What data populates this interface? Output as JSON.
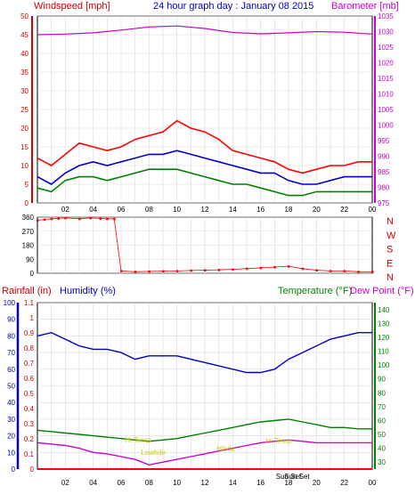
{
  "chart_data": [
    {
      "type": "line",
      "title": "24 hour graph day : January 08 2015",
      "left_label": "Windspeed [mph]",
      "right_label": "Barometer [mb]",
      "x_ticks": [
        "02",
        "04",
        "06",
        "08",
        "10",
        "12",
        "14",
        "16",
        "18",
        "20",
        "22",
        "00"
      ],
      "x_range_hours": [
        0,
        24
      ],
      "left_axis": {
        "min": 0,
        "max": 50,
        "ticks": [
          "0",
          "5",
          "10",
          "15",
          "20",
          "25",
          "30",
          "35",
          "40",
          "45",
          "50"
        ]
      },
      "right_axis": {
        "min": 975,
        "max": 1035,
        "ticks": [
          "975",
          "980",
          "985",
          "990",
          "995",
          "1000",
          "1005",
          "1010",
          "1015",
          "1020",
          "1025",
          "1030",
          "1035"
        ]
      },
      "grid": true,
      "colors": {
        "gust": "#ff0000",
        "wind": "#0000cc",
        "windspeed_green": "#008000",
        "barometer": "#cc00cc"
      },
      "series": [
        {
          "name": "Windspeed",
          "color": "#ff0000",
          "x": [
            0,
            1,
            2,
            3,
            4,
            5,
            6,
            7,
            8,
            9,
            10,
            11,
            12,
            13,
            14,
            15,
            16,
            17,
            18,
            19,
            20,
            21,
            22,
            23,
            24
          ],
          "values": [
            12,
            10,
            13,
            16,
            15,
            14,
            15,
            17,
            18,
            19,
            22,
            20,
            19,
            17,
            14,
            13,
            12,
            11,
            9,
            8,
            9,
            10,
            10,
            11,
            11
          ]
        },
        {
          "name": "",
          "color": "#0000cc",
          "x": [
            0,
            1,
            2,
            3,
            4,
            5,
            6,
            7,
            8,
            9,
            10,
            11,
            12,
            13,
            14,
            15,
            16,
            17,
            18,
            19,
            20,
            21,
            22,
            23,
            24
          ],
          "values": [
            7,
            5,
            8,
            10,
            11,
            10,
            11,
            12,
            13,
            13,
            14,
            13,
            12,
            11,
            10,
            9,
            8,
            8,
            6,
            5,
            5,
            6,
            7,
            7,
            7
          ]
        },
        {
          "name": "",
          "color": "#008000",
          "x": [
            0,
            1,
            2,
            3,
            4,
            5,
            6,
            7,
            8,
            9,
            10,
            11,
            12,
            13,
            14,
            15,
            16,
            17,
            18,
            19,
            20,
            21,
            22,
            23,
            24
          ],
          "values": [
            4,
            3,
            6,
            7,
            7,
            6,
            7,
            8,
            9,
            9,
            9,
            8,
            7,
            6,
            5,
            5,
            4,
            3,
            2,
            2,
            3,
            3,
            3,
            3,
            3
          ]
        },
        {
          "name": "Barometer",
          "color": "#cc00cc",
          "x": [
            0,
            2,
            4,
            6,
            8,
            10,
            12,
            14,
            16,
            18,
            20,
            22,
            24
          ],
          "values": [
            1029,
            1029.2,
            1029.6,
            1030.5,
            1031.5,
            1031.8,
            1031,
            1029.7,
            1029.3,
            1029.6,
            1030,
            1029.8,
            1029.2
          ]
        }
      ]
    },
    {
      "type": "scatter",
      "title": "",
      "y_ticks": [
        "360",
        "270",
        "180",
        "90",
        "0"
      ],
      "right_labels": [
        "N",
        "W",
        "S",
        "E",
        "N"
      ],
      "y_range": [
        0,
        360
      ],
      "series": [
        {
          "name": "",
          "color": "#ff0000",
          "x": [
            0,
            0.5,
            1,
            1.5,
            2,
            3,
            3.8,
            4.5,
            5,
            5.5,
            6,
            7,
            8,
            9,
            10,
            11,
            12,
            13,
            14,
            15,
            16,
            17,
            18,
            19,
            20,
            21,
            22,
            23,
            24
          ],
          "values": [
            340,
            345,
            350,
            352,
            355,
            350,
            355,
            352,
            350,
            350,
            15,
            10,
            12,
            14,
            15,
            18,
            20,
            22,
            25,
            30,
            35,
            40,
            45,
            30,
            20,
            15,
            15,
            10,
            10
          ]
        }
      ]
    },
    {
      "type": "line",
      "left_label_1": "Rainfall (in)",
      "left_label_2": "Humidity (%)",
      "right_label_1": "Temperature (°F)",
      "right_label_2": "Dew Point (°F)",
      "rain_axis": {
        "min": 0,
        "max": 1.1,
        "ticks": [
          "0",
          "0.1",
          "0.2",
          "0.3",
          "0.4",
          "0.5",
          "0.6",
          "0.7",
          "0.8",
          "0.9",
          "1",
          "1.1"
        ]
      },
      "humidity_axis": {
        "min": 0,
        "max": 100,
        "ticks": [
          "0",
          "10",
          "20",
          "30",
          "40",
          "50",
          "60",
          "70",
          "80",
          "90",
          "100"
        ]
      },
      "temp_axis": {
        "min": 25,
        "max": 145,
        "ticks": [
          "30",
          "40",
          "50",
          "60",
          "70",
          "80",
          "90",
          "100",
          "110",
          "120",
          "130",
          "140"
        ]
      },
      "x_ticks": [
        "02",
        "04",
        "06",
        "08",
        "10",
        "12",
        "14",
        "16",
        "18",
        "20",
        "22",
        "00"
      ],
      "annotations": [
        "Hi Temp",
        "Lowtide",
        "Hitide",
        "Hi Temp",
        "Sun Set",
        "Sun Set"
      ],
      "series": [
        {
          "name": "Humidity",
          "color": "#0000cc",
          "x": [
            0,
            1,
            2,
            3,
            4,
            5,
            6,
            7,
            8,
            9,
            10,
            11,
            12,
            13,
            14,
            15,
            16,
            17,
            18,
            19,
            20,
            21,
            22,
            23,
            24
          ],
          "values": [
            80,
            82,
            78,
            74,
            72,
            72,
            70,
            66,
            68,
            68,
            68,
            66,
            64,
            62,
            60,
            58,
            58,
            60,
            66,
            70,
            74,
            78,
            80,
            82,
            82
          ]
        },
        {
          "name": "Temperature",
          "color": "#008000",
          "x": [
            0,
            1,
            2,
            3,
            4,
            5,
            6,
            7,
            8,
            9,
            10,
            11,
            12,
            13,
            14,
            15,
            16,
            17,
            18,
            19,
            20,
            21,
            22,
            23,
            24
          ],
          "values": [
            53,
            52,
            51,
            50,
            49,
            48,
            47,
            46,
            45,
            46,
            47,
            49,
            51,
            53,
            55,
            57,
            59,
            60,
            61,
            59,
            57,
            55,
            55,
            54,
            54
          ]
        },
        {
          "name": "Dew Point",
          "color": "#cc00cc",
          "x": [
            0,
            1,
            2,
            3,
            4,
            5,
            6,
            7,
            8,
            9,
            10,
            11,
            12,
            13,
            14,
            15,
            16,
            17,
            18,
            19,
            20,
            21,
            22,
            23,
            24
          ],
          "values": [
            44,
            43,
            42,
            40,
            37,
            36,
            34,
            32,
            28,
            30,
            32,
            34,
            36,
            38,
            40,
            42,
            44,
            45,
            46,
            45,
            44,
            44,
            44,
            44,
            44
          ]
        },
        {
          "name": "Rainfall",
          "color": "#ff0000",
          "x": [
            0,
            24
          ],
          "values": [
            0,
            0
          ]
        }
      ]
    }
  ]
}
